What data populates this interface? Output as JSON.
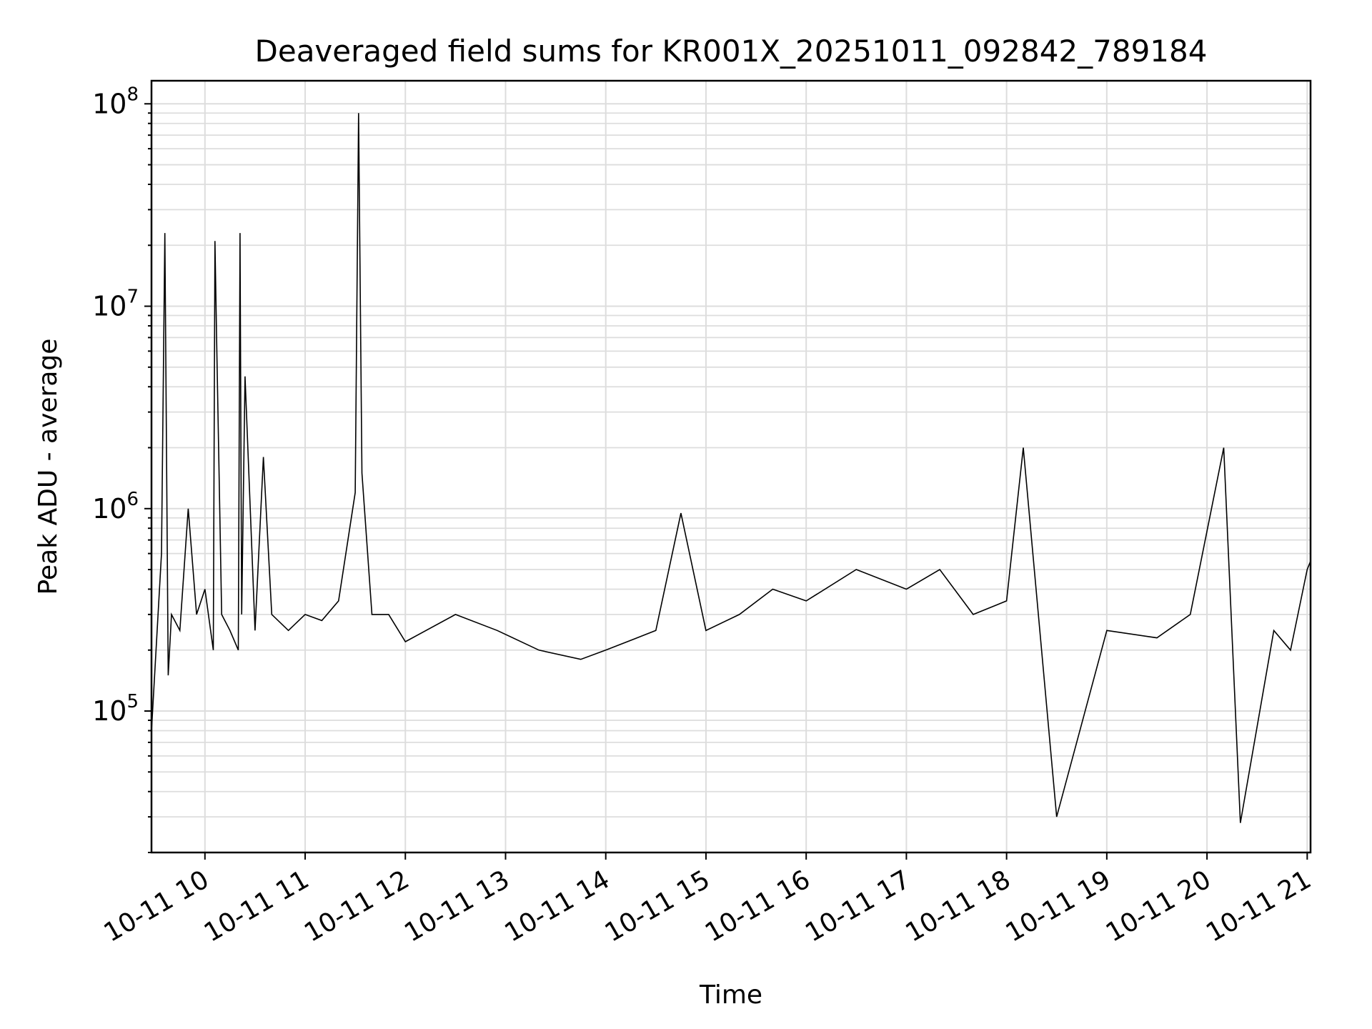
{
  "chart_data": {
    "type": "line",
    "title": "Deaveraged field sums for KR001X_20251011_092842_789184",
    "xlabel": "Time",
    "ylabel": "Peak ADU - average",
    "yscale": "log",
    "grid": true,
    "legend": "none",
    "line_color": "#000000",
    "xlim": [
      "2025-10-11 09:28",
      "2025-10-11 21:02"
    ],
    "ylim": [
      20000,
      130000000
    ],
    "x_ticks": [
      "10-11 10",
      "10-11 11",
      "10-11 12",
      "10-11 13",
      "10-11 14",
      "10-11 15",
      "10-11 16",
      "10-11 17",
      "10-11 18",
      "10-11 19",
      "10-11 20",
      "10-11 21"
    ],
    "y_ticks": [
      {
        "base": "10",
        "exp": "5"
      },
      {
        "base": "10",
        "exp": "6"
      },
      {
        "base": "10",
        "exp": "7"
      },
      {
        "base": "10",
        "exp": "8"
      }
    ],
    "series": [
      {
        "x": [
          "2025-10-11 09:28",
          "2025-10-11 09:34",
          "2025-10-11 09:36",
          "2025-10-11 09:38",
          "2025-10-11 09:40",
          "2025-10-11 09:45",
          "2025-10-11 09:50",
          "2025-10-11 09:55",
          "2025-10-11 10:00",
          "2025-10-11 10:05",
          "2025-10-11 10:06",
          "2025-10-11 10:07",
          "2025-10-11 10:10",
          "2025-10-11 10:15",
          "2025-10-11 10:20",
          "2025-10-11 10:21",
          "2025-10-11 10:22",
          "2025-10-11 10:24",
          "2025-10-11 10:30",
          "2025-10-11 10:35",
          "2025-10-11 10:40",
          "2025-10-11 10:50",
          "2025-10-11 11:00",
          "2025-10-11 11:10",
          "2025-10-11 11:20",
          "2025-10-11 11:30",
          "2025-10-11 11:32",
          "2025-10-11 11:34",
          "2025-10-11 11:40",
          "2025-10-11 11:50",
          "2025-10-11 12:00",
          "2025-10-11 12:30",
          "2025-10-11 12:55",
          "2025-10-11 13:20",
          "2025-10-11 13:45",
          "2025-10-11 14:00",
          "2025-10-11 14:30",
          "2025-10-11 14:45",
          "2025-10-11 15:00",
          "2025-10-11 15:20",
          "2025-10-11 15:40",
          "2025-10-11 16:00",
          "2025-10-11 16:30",
          "2025-10-11 17:00",
          "2025-10-11 17:20",
          "2025-10-11 17:40",
          "2025-10-11 18:00",
          "2025-10-11 18:10",
          "2025-10-11 18:30",
          "2025-10-11 19:00",
          "2025-10-11 19:30",
          "2025-10-11 19:50",
          "2025-10-11 20:10",
          "2025-10-11 20:20",
          "2025-10-11 20:40",
          "2025-10-11 20:50",
          "2025-10-11 21:00",
          "2025-10-11 21:02"
        ],
        "y": [
          80000,
          600000,
          23000000,
          150000,
          300000,
          250000,
          1000000,
          300000,
          400000,
          200000,
          21000000,
          7000000,
          300000,
          250000,
          200000,
          23000000,
          300000,
          4500000,
          250000,
          1800000,
          300000,
          250000,
          300000,
          280000,
          350000,
          1200000,
          90000000,
          1500000,
          300000,
          300000,
          220000,
          300000,
          250000,
          200000,
          180000,
          200000,
          250000,
          950000,
          250000,
          300000,
          400000,
          350000,
          500000,
          400000,
          500000,
          300000,
          350000,
          2000000,
          30000,
          250000,
          230000,
          300000,
          2000000,
          28000,
          250000,
          200000,
          500000,
          550000
        ]
      }
    ]
  }
}
